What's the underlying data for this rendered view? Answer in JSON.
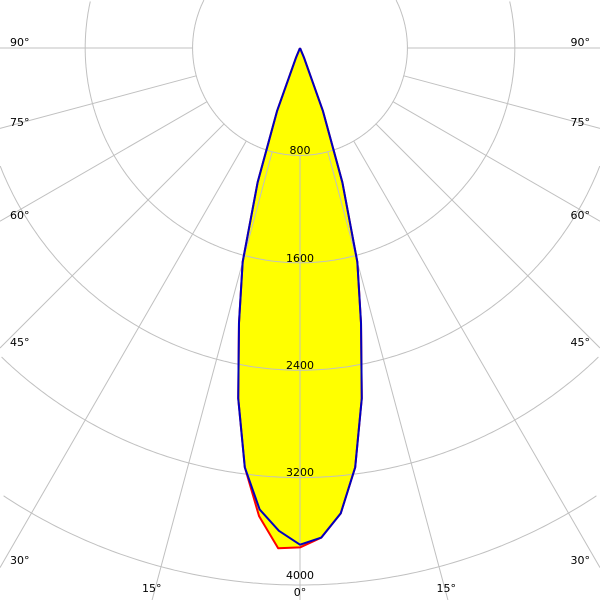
{
  "chart_data": {
    "type": "polar",
    "title": "",
    "radial_ticks": [
      "800",
      "1600",
      "2400",
      "3200",
      "4000"
    ],
    "radial_tick_values": [
      800,
      1600,
      2400,
      3200,
      4000
    ],
    "rmax": 4000,
    "angle_labels_left": [
      "90°",
      "75°",
      "60°",
      "45°",
      "30°",
      "15°"
    ],
    "angle_labels_right": [
      "90°",
      "75°",
      "60°",
      "45°",
      "30°",
      "15°"
    ],
    "angle_label_zero": "0°",
    "angle_ticks_deg": [
      0,
      15,
      30,
      45,
      60,
      75,
      90
    ],
    "grid": true,
    "fill_color": "#ffff00",
    "grid_color": "#c0c0c0",
    "series": [
      {
        "color": "#ff0000",
        "angles": [
          -90,
          -25,
          -22.5,
          -20,
          -17.5,
          -15,
          -12.5,
          -10,
          -7.5,
          -5,
          -2.5,
          0,
          2.5,
          5,
          7.5,
          10,
          12.5,
          15,
          17.5,
          20,
          22.5,
          25,
          90
        ],
        "values": [
          0,
          0,
          80,
          500,
          1050,
          1650,
          2100,
          2650,
          3150,
          3500,
          3730,
          3720,
          3650,
          3480,
          3150,
          2650,
          2100,
          1650,
          1050,
          500,
          80,
          0,
          0
        ]
      },
      {
        "color": "#0000c0",
        "angles": [
          -90,
          -25,
          -22.5,
          -20,
          -17.5,
          -15,
          -12.5,
          -10,
          -7.5,
          -5,
          -2.5,
          0,
          2.5,
          5,
          7.5,
          10,
          12.5,
          15,
          17.5,
          20,
          22.5,
          25,
          90
        ],
        "values": [
          0,
          0,
          80,
          500,
          1050,
          1650,
          2100,
          2650,
          3150,
          3450,
          3600,
          3700,
          3650,
          3480,
          3150,
          2650,
          2100,
          1650,
          1050,
          500,
          80,
          0,
          0
        ]
      }
    ]
  }
}
